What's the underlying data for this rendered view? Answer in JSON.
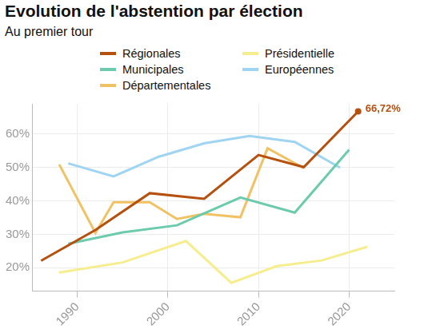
{
  "chart_data": {
    "type": "line",
    "title": "Evolution de l'abstention par élection",
    "subtitle": "Au premier tour",
    "legend": "top",
    "grid": true,
    "xlim": [
      1985,
      2025
    ],
    "xticks": [
      1990,
      2000,
      2010,
      2020
    ],
    "ylim": [
      13,
      69
    ],
    "yticks": [
      {
        "value": 20,
        "label": "20%"
      },
      {
        "value": 30,
        "label": "30%"
      },
      {
        "value": 40,
        "label": "40%"
      },
      {
        "value": 50,
        "label": "50%"
      },
      {
        "value": 60,
        "label": "60%"
      }
    ],
    "series": [
      {
        "name": "Régionales",
        "color": "#b5500f",
        "x": [
          1986,
          1992,
          1998,
          2004,
          2010,
          2015,
          2021
        ],
        "values": [
          22.1,
          31.3,
          42.3,
          40.6,
          53.7,
          50.1,
          66.72
        ]
      },
      {
        "name": "Municipales",
        "color": "#6dcbad",
        "x": [
          1989,
          1995,
          2001,
          2008,
          2014,
          2020
        ],
        "values": [
          27.2,
          30.6,
          32.7,
          41.0,
          36.5,
          55.3
        ]
      },
      {
        "name": "Départementales",
        "color": "#f0c264",
        "x": [
          1988,
          1992,
          1994,
          1998,
          2001,
          2004,
          2008,
          2011,
          2015
        ],
        "values": [
          50.9,
          30.4,
          39.6,
          39.6,
          34.6,
          36.1,
          35.1,
          55.7,
          49.8
        ]
      },
      {
        "name": "Présidentielle",
        "color": "#f6ee8e",
        "x": [
          1988,
          1995,
          2002,
          2007,
          2012,
          2017,
          2022
        ],
        "values": [
          18.6,
          21.6,
          28.0,
          15.5,
          20.5,
          22.2,
          26.3
        ]
      },
      {
        "name": "Européennes",
        "color": "#9fd4f2",
        "x": [
          1989,
          1994,
          1999,
          2004,
          2009,
          2014,
          2019
        ],
        "values": [
          51.2,
          47.3,
          53.2,
          57.2,
          59.4,
          57.6,
          49.9
        ]
      }
    ],
    "annotations": [
      {
        "series": "Régionales",
        "x": 2021,
        "y": 66.72,
        "text": "66,72%"
      }
    ]
  }
}
